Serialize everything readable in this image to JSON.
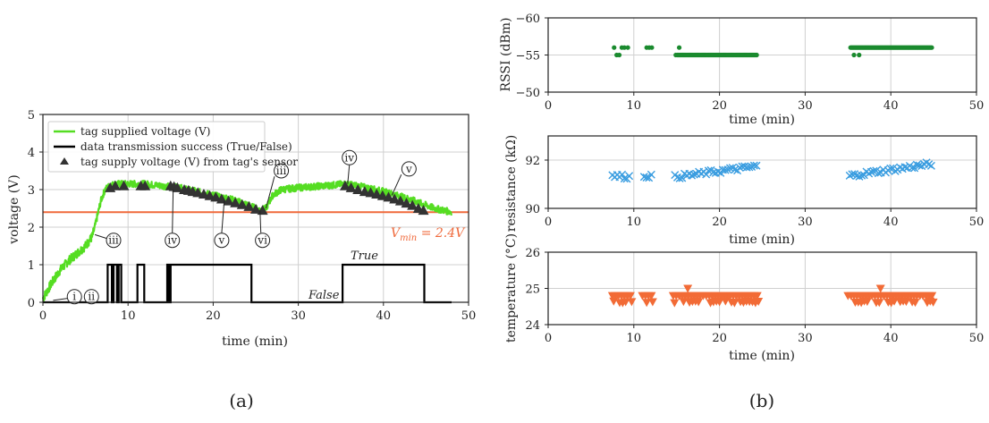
{
  "colors": {
    "voltage_line": "#55dd22",
    "success_line": "#000000",
    "sensor_marker": "#333333",
    "vmin_line": "#f06a3c",
    "rssi": "#1a8a2e",
    "resistance": "#3a9de0",
    "temperature": "#f26b36"
  },
  "chart_data": [
    {
      "panel": "a",
      "panel_label": "(a)",
      "type": "line",
      "xlabel": "time (min)",
      "ylabel": "voltage (V)",
      "xlim": [
        0,
        50
      ],
      "ylim": [
        0,
        5
      ],
      "xticks": [
        "0",
        "10",
        "20",
        "30",
        "40",
        "50"
      ],
      "yticks": [
        "0",
        "1",
        "2",
        "3",
        "4",
        "5"
      ],
      "grid": true,
      "legend_position": "top-left",
      "legend": [
        "tag supplied voltage (V)",
        "data transmission success (True/False)",
        "tag supply voltage (V) from tag's sensor"
      ],
      "series": [
        {
          "name": "tag supplied voltage (V)",
          "kind": "noisy-line",
          "x": [
            0,
            1,
            2,
            3,
            4,
            5,
            5.8,
            6.2,
            6.8,
            7.3,
            7.8,
            8.5,
            10,
            12,
            14,
            16,
            18,
            20,
            22,
            24,
            25.5,
            26.2,
            27,
            28,
            30,
            33,
            35.5,
            37,
            40,
            43,
            46,
            48
          ],
          "y": [
            0.1,
            0.5,
            0.85,
            1.1,
            1.3,
            1.5,
            1.75,
            2.1,
            2.7,
            3.0,
            3.1,
            3.15,
            3.15,
            3.15,
            3.1,
            3.05,
            2.95,
            2.85,
            2.75,
            2.6,
            2.45,
            2.5,
            2.85,
            3.0,
            3.05,
            3.1,
            3.15,
            3.1,
            2.95,
            2.75,
            2.5,
            2.4
          ]
        },
        {
          "name": "data transmission success (True/False)",
          "kind": "step",
          "x": [
            0,
            7.6,
            7.6,
            8.1,
            8.1,
            8.3,
            8.3,
            8.7,
            8.7,
            8.9,
            8.9,
            9.2,
            9.2,
            9.5,
            9.5,
            11.1,
            11.1,
            11.9,
            11.9,
            14.6,
            14.6,
            14.8,
            14.8,
            15.0,
            15.0,
            24.5,
            24.5,
            35.2,
            35.2,
            44.8,
            44.8,
            48
          ],
          "y": [
            0,
            0,
            1,
            1,
            0,
            0,
            1,
            1,
            0,
            0,
            1,
            1,
            0,
            0,
            0,
            0,
            1,
            1,
            0,
            0,
            1,
            1,
            0,
            0,
            1,
            1,
            0,
            0,
            1,
            1,
            0,
            0
          ]
        },
        {
          "name": "tag supply voltage (V) from tag's sensor",
          "kind": "markers",
          "x": [
            7.9,
            8.5,
            9.5,
            11.5,
            12.0,
            15.0,
            15.4,
            15.8,
            16.6,
            17.1,
            17.6,
            18.2,
            18.9,
            19.6,
            20.3,
            21.0,
            21.8,
            22.6,
            23.4,
            24.2,
            25.0,
            25.8,
            35.5,
            36.2,
            37.0,
            37.8,
            38.5,
            39.2,
            39.9,
            40.6,
            41.3,
            42.0,
            42.7,
            43.4,
            44.1,
            44.7
          ],
          "y": [
            3.05,
            3.1,
            3.1,
            3.1,
            3.1,
            3.1,
            3.08,
            3.05,
            3.0,
            2.98,
            2.95,
            2.92,
            2.88,
            2.84,
            2.8,
            2.75,
            2.7,
            2.65,
            2.6,
            2.55,
            2.48,
            2.45,
            3.1,
            3.05,
            3.0,
            2.95,
            2.92,
            2.88,
            2.84,
            2.8,
            2.75,
            2.7,
            2.64,
            2.58,
            2.5,
            2.45
          ]
        }
      ],
      "threshold": {
        "y": 2.4,
        "label": "V_min = 2.4V",
        "label_main": "V",
        "label_sub": "min",
        "label_rest": " = 2.4V"
      },
      "state_labels": {
        "true": "True",
        "false": "False"
      },
      "annotations": [
        {
          "text": "i",
          "x": 3.7,
          "y": 0.15
        },
        {
          "text": "ii",
          "x": 5.7,
          "y": 0.15
        },
        {
          "text": "iii",
          "x": 8.3,
          "y": 1.65
        },
        {
          "text": "iv",
          "x": 15.2,
          "y": 1.65
        },
        {
          "text": "v",
          "x": 21.0,
          "y": 1.65
        },
        {
          "text": "vi",
          "x": 25.8,
          "y": 1.65
        },
        {
          "text": "iii",
          "x": 28.0,
          "y": 3.5
        },
        {
          "text": "iv",
          "x": 36.0,
          "y": 3.85
        },
        {
          "text": "v",
          "x": 43.0,
          "y": 3.55
        }
      ]
    },
    {
      "panel": "b-top",
      "panel_label": "(b)",
      "type": "scatter",
      "xlabel": "time (min)",
      "ylabel": "RSSI (dBm)",
      "xlim": [
        0,
        50
      ],
      "ylim": [
        -50,
        -60
      ],
      "inverted_y": true,
      "xticks": [
        "0",
        "10",
        "20",
        "30",
        "40",
        "50"
      ],
      "yticks": [
        "−60",
        "−55",
        "−50"
      ],
      "ytick_values": [
        -60,
        -55,
        -50
      ],
      "grid": true,
      "marker": "circle",
      "series": [
        {
          "x": [
            7.7,
            8.0,
            8.3,
            8.6,
            8.9,
            9.3,
            11.5,
            11.8,
            12.1,
            14.9,
            15.3
          ],
          "y": [
            -56,
            -55,
            -55,
            -56,
            -56,
            -56,
            -56,
            -56,
            -56,
            -55,
            -56
          ],
          "range_runs": [
            {
              "from": 15.1,
              "to": 24.4,
              "y": -55
            },
            {
              "from": 35.3,
              "to": 44.8,
              "y": -56
            }
          ],
          "extra_x": [
            35.7,
            36.3
          ],
          "extra_y": [
            -55,
            -55
          ]
        }
      ]
    },
    {
      "panel": "b-middle",
      "type": "scatter",
      "xlabel": "time (min)",
      "ylabel": "resistance (kΩ)",
      "xlim": [
        0,
        50
      ],
      "ylim": [
        90,
        93
      ],
      "xticks": [
        "0",
        "10",
        "20",
        "30",
        "40",
        "50"
      ],
      "yticks": [
        "90",
        "92"
      ],
      "ytick_values": [
        90,
        92
      ],
      "grid": true,
      "marker": "x",
      "series": [
        {
          "segments": [
            {
              "from": 7.5,
              "to": 9.6,
              "y_start": 91.35,
              "y_end": 91.3
            },
            {
              "from": 11.2,
              "to": 12.2,
              "y_start": 91.35,
              "y_end": 91.35
            },
            {
              "from": 14.8,
              "to": 24.5,
              "y_start": 91.3,
              "y_end": 91.75
            },
            {
              "from": 35.2,
              "to": 44.9,
              "y_start": 91.35,
              "y_end": 91.85
            }
          ]
        }
      ]
    },
    {
      "panel": "b-bottom",
      "type": "scatter",
      "xlabel": "time (min)",
      "ylabel": "temperature (°C)",
      "xlim": [
        0,
        50
      ],
      "ylim": [
        24,
        26
      ],
      "xticks": [
        "0",
        "10",
        "20",
        "30",
        "40",
        "50"
      ],
      "yticks": [
        "24",
        "25",
        "26"
      ],
      "ytick_values": [
        24,
        25,
        26
      ],
      "grid": true,
      "marker": "triangle-down",
      "series": [
        {
          "segments": [
            {
              "from": 7.5,
              "to": 9.6
            },
            {
              "from": 11.0,
              "to": 12.2
            },
            {
              "from": 14.6,
              "to": 24.5
            },
            {
              "from": 35.0,
              "to": 44.9
            }
          ],
          "levels": [
            24.6,
            24.8
          ],
          "outliers": [
            {
              "x": 16.3,
              "y": 25.0
            },
            {
              "x": 38.8,
              "y": 25.0
            }
          ]
        }
      ]
    }
  ]
}
